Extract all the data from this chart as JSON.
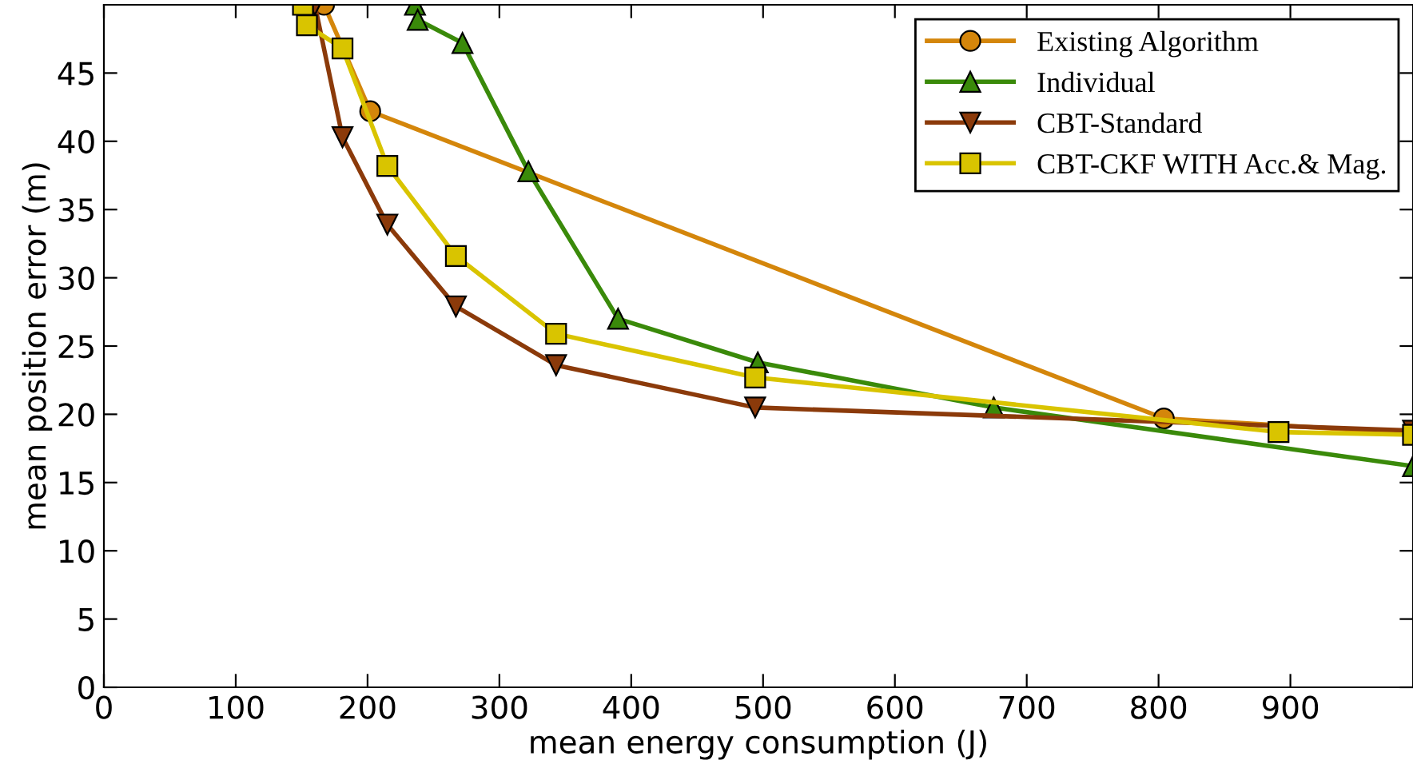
{
  "chart_data": {
    "type": "line",
    "xlabel": "mean energy consumption (J)",
    "ylabel": "mean position error (m)",
    "xlim": [
      0,
      993
    ],
    "ylim": [
      0,
      50
    ],
    "xticks": [
      0,
      100,
      200,
      300,
      400,
      500,
      600,
      700,
      800,
      900
    ],
    "yticks": [
      0,
      5,
      10,
      15,
      20,
      25,
      30,
      35,
      40,
      45
    ],
    "grid": false,
    "legend": "top right",
    "line_style": "solid",
    "series": [
      {
        "name": "Existing Algorithm",
        "color": "#d4860b",
        "marker": "circle",
        "x": [
          167,
          202,
          804,
          993
        ],
        "values": [
          50,
          42.2,
          19.7,
          18.6
        ]
      },
      {
        "name": "Individual",
        "color": "#3a8a0a",
        "marker": "triangle",
        "x": [
          236,
          238,
          272,
          322,
          390,
          496,
          675,
          993
        ],
        "values": [
          50,
          48.9,
          47.2,
          37.8,
          27.0,
          23.8,
          20.5,
          16.2
        ]
      },
      {
        "name": "CBT-Standard",
        "color": "#8b3a0a",
        "marker": "triangle_down",
        "x": [
          160,
          181,
          215,
          267,
          343,
          494,
          993
        ],
        "values": [
          50,
          40.3,
          33.9,
          27.9,
          23.6,
          20.5,
          18.8
        ]
      },
      {
        "name": "CBT-CKF WITH Acc.& Mag.",
        "color": "#d9c400",
        "marker": "square",
        "x": [
          151,
          154,
          181,
          215,
          267,
          343,
          494,
          891,
          993
        ],
        "values": [
          50,
          48.5,
          46.8,
          38.2,
          31.6,
          25.9,
          22.7,
          18.7,
          18.5
        ]
      }
    ]
  }
}
